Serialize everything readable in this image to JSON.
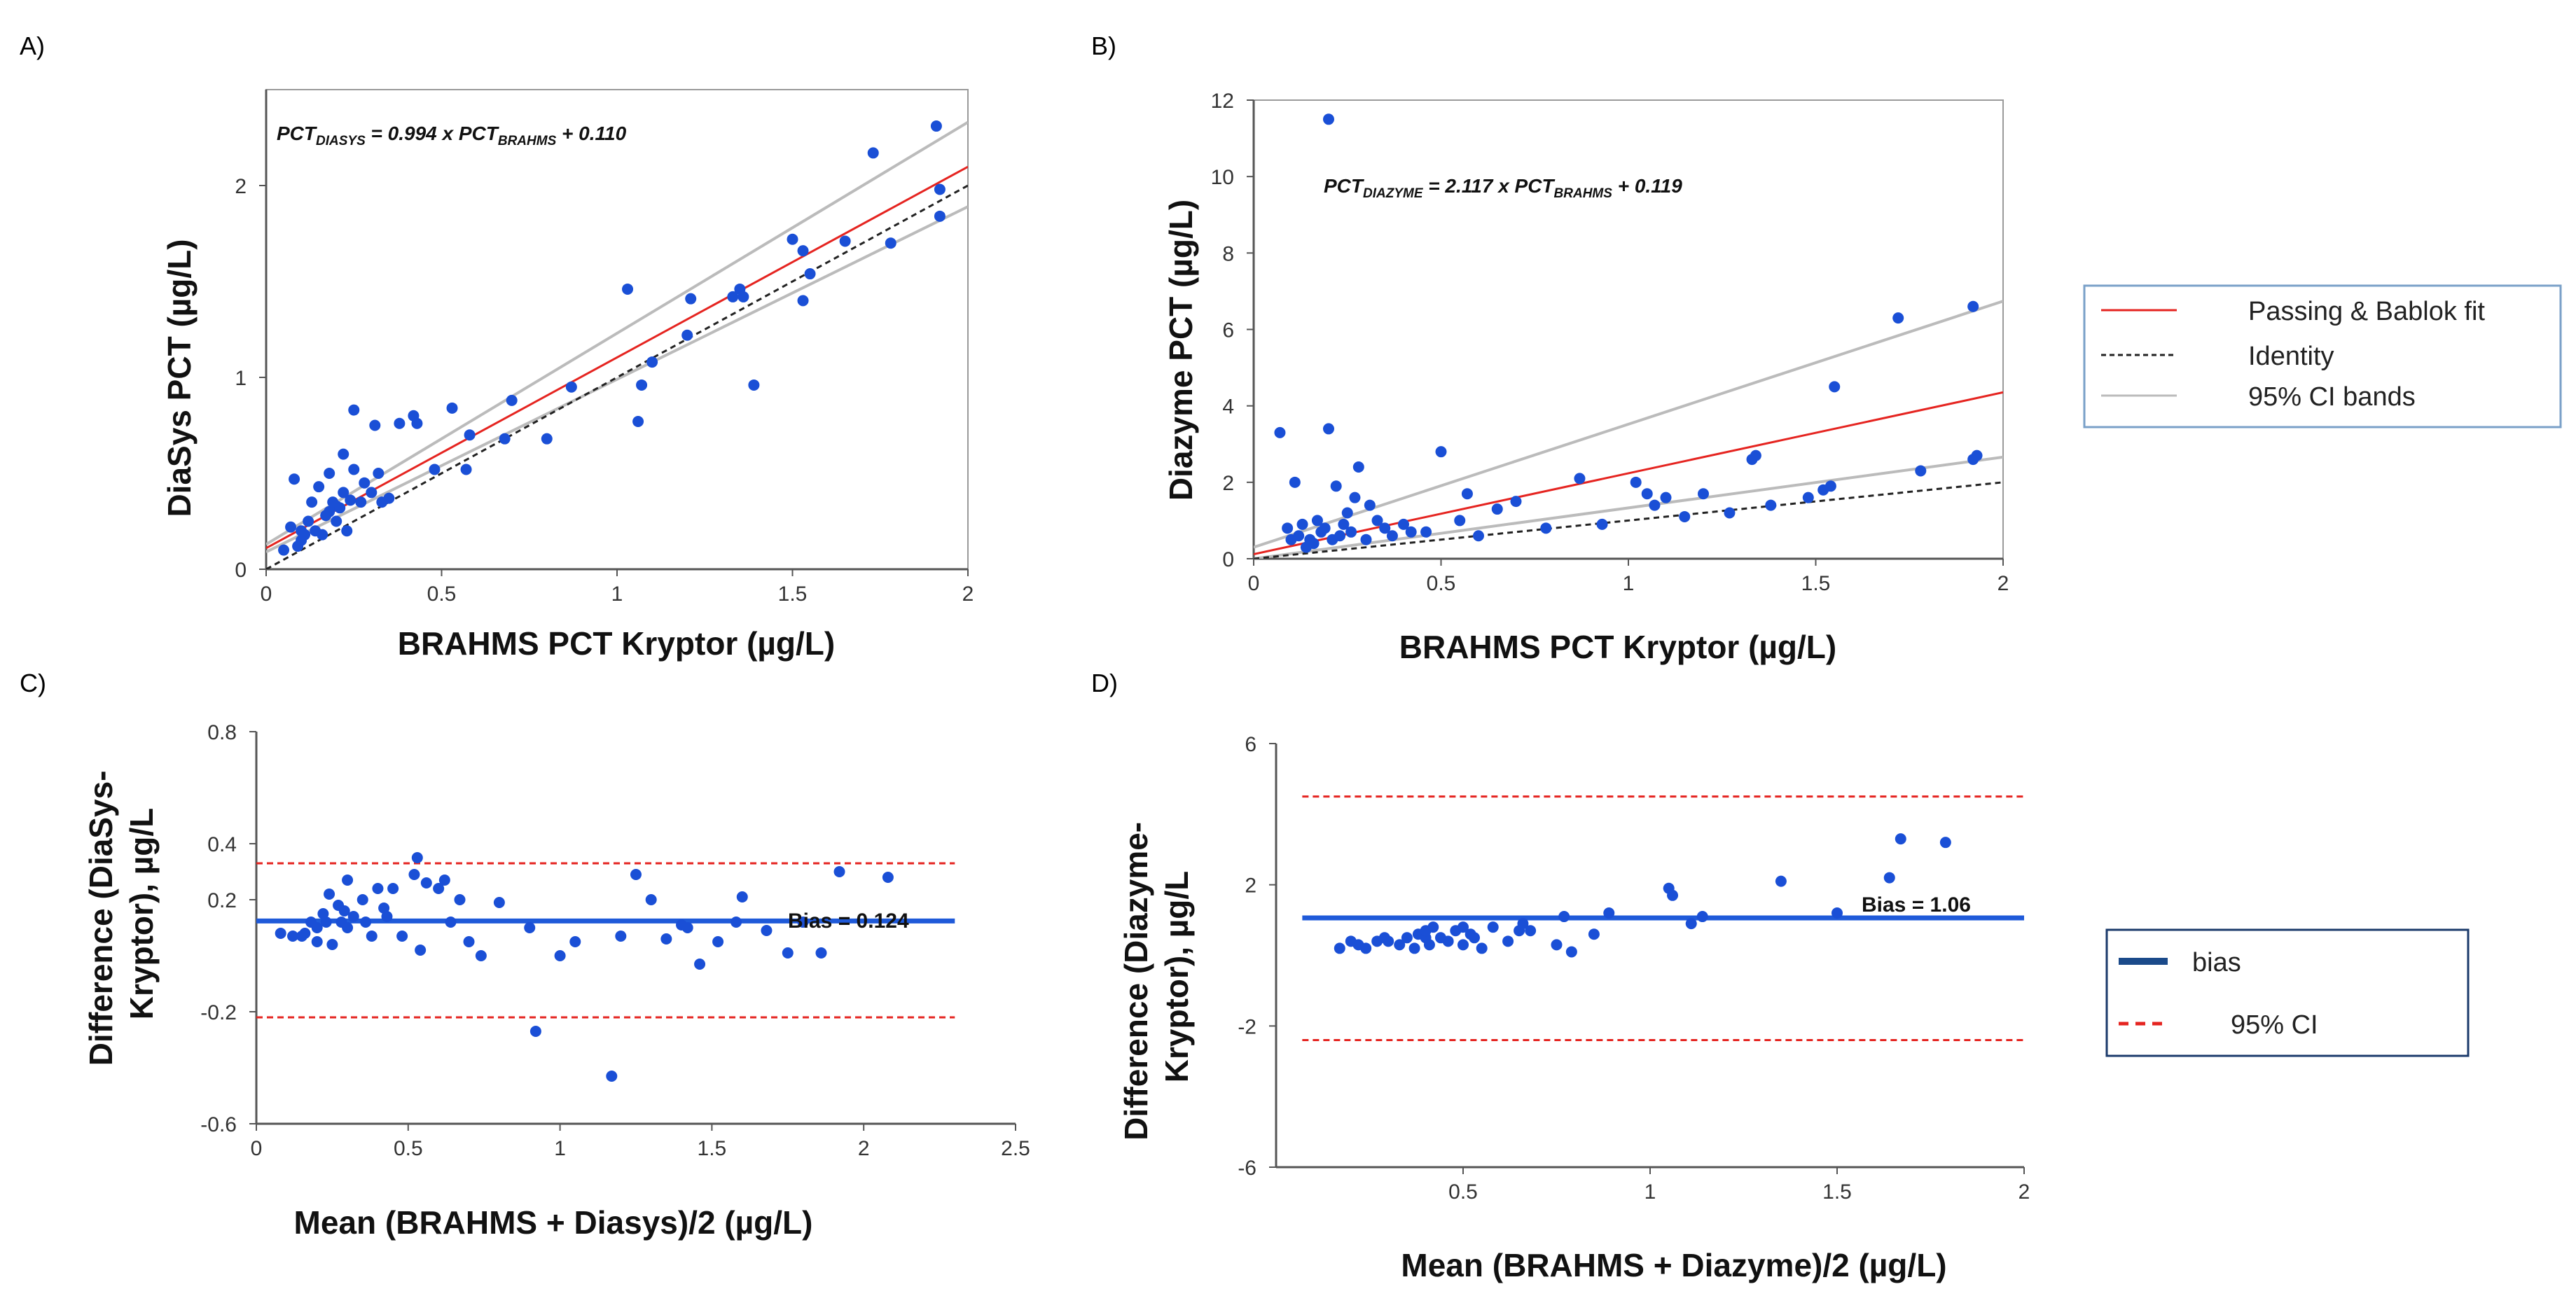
{
  "chart_data": [
    {
      "id": "A",
      "panel_label": "A)",
      "type": "scatter",
      "xlabel": "BRAHMS PCT  Kryptor (µg/L)",
      "ylabel": "DiaSys PCT (µg/L)",
      "xlim": [
        0,
        2
      ],
      "ylim": [
        0,
        2.5
      ],
      "xticks": [
        0,
        0.5,
        1,
        1.5,
        2
      ],
      "xtick_labels": [
        "0",
        "0.5",
        "1",
        "1.5",
        "2"
      ],
      "yticks": [
        0,
        1,
        2
      ],
      "ytick_labels": [
        "0",
        "1",
        "2"
      ],
      "equation": {
        "pre": "PCT",
        "sub1": "DIASYS",
        "mid": " = 0.994 x PCT",
        "sub2": "BRAHMS",
        "post": " + 0.110"
      },
      "fit": {
        "slope": 0.994,
        "intercept": 0.11
      },
      "ci_upper": {
        "slope": 1.1,
        "intercept": 0.13
      },
      "ci_lower": {
        "slope": 0.9,
        "intercept": 0.09
      },
      "points": [
        [
          0.05,
          0.1
        ],
        [
          0.07,
          0.22
        ],
        [
          0.08,
          0.47
        ],
        [
          0.09,
          0.12
        ],
        [
          0.1,
          0.15
        ],
        [
          0.1,
          0.2
        ],
        [
          0.11,
          0.18
        ],
        [
          0.12,
          0.25
        ],
        [
          0.13,
          0.35
        ],
        [
          0.14,
          0.2
        ],
        [
          0.15,
          0.43
        ],
        [
          0.16,
          0.18
        ],
        [
          0.17,
          0.28
        ],
        [
          0.18,
          0.3
        ],
        [
          0.18,
          0.5
        ],
        [
          0.19,
          0.35
        ],
        [
          0.2,
          0.25
        ],
        [
          0.2,
          0.33
        ],
        [
          0.21,
          0.32
        ],
        [
          0.22,
          0.4
        ],
        [
          0.22,
          0.6
        ],
        [
          0.23,
          0.2
        ],
        [
          0.24,
          0.36
        ],
        [
          0.25,
          0.52
        ],
        [
          0.25,
          0.83
        ],
        [
          0.27,
          0.35
        ],
        [
          0.28,
          0.45
        ],
        [
          0.3,
          0.4
        ],
        [
          0.31,
          0.75
        ],
        [
          0.32,
          0.5
        ],
        [
          0.33,
          0.35
        ],
        [
          0.35,
          0.37
        ],
        [
          0.38,
          0.76
        ],
        [
          0.42,
          0.8
        ],
        [
          0.43,
          0.76
        ],
        [
          0.48,
          0.52
        ],
        [
          0.53,
          0.84
        ],
        [
          0.57,
          0.52
        ],
        [
          0.58,
          0.7
        ],
        [
          0.68,
          0.68
        ],
        [
          0.7,
          0.88
        ],
        [
          0.8,
          0.68
        ],
        [
          0.87,
          0.95
        ],
        [
          1.03,
          1.46
        ],
        [
          1.06,
          0.77
        ],
        [
          1.07,
          0.96
        ],
        [
          1.1,
          1.08
        ],
        [
          1.2,
          1.22
        ],
        [
          1.21,
          1.41
        ],
        [
          1.33,
          1.42
        ],
        [
          1.35,
          1.46
        ],
        [
          1.36,
          1.42
        ],
        [
          1.39,
          0.96
        ],
        [
          1.5,
          1.72
        ],
        [
          1.53,
          1.66
        ],
        [
          1.53,
          1.4
        ],
        [
          1.55,
          1.54
        ],
        [
          1.65,
          1.71
        ],
        [
          1.73,
          2.17
        ],
        [
          1.78,
          1.7
        ],
        [
          1.91,
          2.31
        ],
        [
          1.92,
          1.98
        ],
        [
          1.92,
          1.84
        ]
      ]
    },
    {
      "id": "B",
      "panel_label": "B)",
      "type": "scatter",
      "xlabel": "BRAHMS PCT  Kryptor (µg/L)",
      "ylabel": "Diazyme PCT (µg/L)",
      "xlim": [
        0,
        2
      ],
      "ylim": [
        0,
        12
      ],
      "xticks": [
        0,
        0.5,
        1,
        1.5,
        2
      ],
      "xtick_labels": [
        "0",
        "0.5",
        "1",
        "1.5",
        "2"
      ],
      "yticks": [
        0,
        2,
        4,
        6,
        8,
        10,
        12
      ],
      "ytick_labels": [
        "0",
        "2",
        "4",
        "6",
        "8",
        "10",
        "12"
      ],
      "equation": {
        "pre": "PCT",
        "sub1": "DIAZYME",
        "mid": " = 2.117 x PCT",
        "sub2": "BRAHMS",
        "post": " + 0.119"
      },
      "fit": {
        "slope": 2.117,
        "intercept": 0.119
      },
      "ci_upper": {
        "slope": 3.22,
        "intercept": 0.3
      },
      "ci_lower": {
        "slope": 1.33,
        "intercept": 0.0
      },
      "points": [
        [
          0.07,
          3.3
        ],
        [
          0.09,
          0.8
        ],
        [
          0.1,
          0.5
        ],
        [
          0.11,
          2.0
        ],
        [
          0.12,
          0.6
        ],
        [
          0.13,
          0.9
        ],
        [
          0.14,
          0.3
        ],
        [
          0.15,
          0.5
        ],
        [
          0.16,
          0.4
        ],
        [
          0.17,
          1.0
        ],
        [
          0.18,
          0.7
        ],
        [
          0.19,
          0.8
        ],
        [
          0.2,
          3.4
        ],
        [
          0.2,
          11.5
        ],
        [
          0.21,
          0.5
        ],
        [
          0.22,
          1.9
        ],
        [
          0.23,
          0.6
        ],
        [
          0.24,
          0.9
        ],
        [
          0.25,
          1.2
        ],
        [
          0.26,
          0.7
        ],
        [
          0.27,
          1.6
        ],
        [
          0.28,
          2.4
        ],
        [
          0.3,
          0.5
        ],
        [
          0.31,
          1.4
        ],
        [
          0.33,
          1.0
        ],
        [
          0.35,
          0.8
        ],
        [
          0.37,
          0.6
        ],
        [
          0.4,
          0.9
        ],
        [
          0.42,
          0.7
        ],
        [
          0.46,
          0.7
        ],
        [
          0.5,
          2.8
        ],
        [
          0.55,
          1.0
        ],
        [
          0.57,
          1.7
        ],
        [
          0.6,
          0.6
        ],
        [
          0.65,
          1.3
        ],
        [
          0.7,
          1.5
        ],
        [
          0.78,
          0.8
        ],
        [
          0.87,
          2.1
        ],
        [
          0.93,
          0.9
        ],
        [
          1.02,
          2.0
        ],
        [
          1.05,
          1.7
        ],
        [
          1.07,
          1.4
        ],
        [
          1.1,
          1.6
        ],
        [
          1.15,
          1.1
        ],
        [
          1.2,
          1.7
        ],
        [
          1.27,
          1.2
        ],
        [
          1.33,
          2.6
        ],
        [
          1.34,
          2.7
        ],
        [
          1.38,
          1.4
        ],
        [
          1.48,
          1.6
        ],
        [
          1.52,
          1.8
        ],
        [
          1.54,
          1.9
        ],
        [
          1.55,
          4.5
        ],
        [
          1.72,
          6.3
        ],
        [
          1.78,
          2.3
        ],
        [
          1.92,
          6.6
        ],
        [
          1.92,
          2.6
        ],
        [
          1.93,
          2.7
        ]
      ]
    },
    {
      "id": "C",
      "panel_label": "C)",
      "type": "scatter",
      "xlabel": "Mean (BRAHMS + Diasys)/2 (µg/L)",
      "ylabel": [
        "Difference (DiaSys-",
        "Kryptor), µg/L"
      ],
      "xlim": [
        0,
        2.5
      ],
      "ylim": [
        -0.6,
        0.8
      ],
      "xticks": [
        0,
        0.5,
        1,
        1.5,
        2,
        2.5
      ],
      "xtick_labels": [
        "0",
        "0.5",
        "1",
        "1.5",
        "2",
        "2.5"
      ],
      "yticks": [
        -0.6,
        -0.2,
        0.2,
        0.4,
        0.8
      ],
      "ytick_labels": [
        "-0.6",
        "-0.2",
        "0.2",
        "0.4",
        "0.8"
      ],
      "bias": 0.124,
      "bias_label": "Bias = 0.124",
      "ci_low": -0.22,
      "ci_high": 0.33,
      "line_end_x": 2.3,
      "points": [
        [
          0.08,
          0.08
        ],
        [
          0.12,
          0.07
        ],
        [
          0.15,
          0.07
        ],
        [
          0.16,
          0.08
        ],
        [
          0.18,
          0.12
        ],
        [
          0.2,
          0.1
        ],
        [
          0.2,
          0.05
        ],
        [
          0.22,
          0.15
        ],
        [
          0.23,
          0.12
        ],
        [
          0.24,
          0.22
        ],
        [
          0.25,
          0.04
        ],
        [
          0.27,
          0.18
        ],
        [
          0.28,
          0.12
        ],
        [
          0.29,
          0.16
        ],
        [
          0.3,
          0.27
        ],
        [
          0.3,
          0.1
        ],
        [
          0.32,
          0.14
        ],
        [
          0.35,
          0.2
        ],
        [
          0.36,
          0.12
        ],
        [
          0.38,
          0.07
        ],
        [
          0.4,
          0.24
        ],
        [
          0.42,
          0.17
        ],
        [
          0.43,
          0.14
        ],
        [
          0.45,
          0.24
        ],
        [
          0.48,
          0.07
        ],
        [
          0.52,
          0.29
        ],
        [
          0.53,
          0.35
        ],
        [
          0.54,
          0.02
        ],
        [
          0.56,
          0.26
        ],
        [
          0.6,
          0.24
        ],
        [
          0.62,
          0.27
        ],
        [
          0.64,
          0.12
        ],
        [
          0.67,
          0.2
        ],
        [
          0.7,
          0.05
        ],
        [
          0.74,
          0.0
        ],
        [
          0.8,
          0.19
        ],
        [
          0.9,
          0.1
        ],
        [
          0.92,
          -0.27
        ],
        [
          1.0,
          0.0
        ],
        [
          1.05,
          0.05
        ],
        [
          1.17,
          -0.43
        ],
        [
          1.2,
          0.07
        ],
        [
          1.25,
          0.29
        ],
        [
          1.3,
          0.2
        ],
        [
          1.35,
          0.06
        ],
        [
          1.4,
          0.11
        ],
        [
          1.42,
          0.1
        ],
        [
          1.46,
          -0.03
        ],
        [
          1.52,
          0.05
        ],
        [
          1.58,
          0.12
        ],
        [
          1.6,
          0.21
        ],
        [
          1.68,
          0.09
        ],
        [
          1.75,
          0.01
        ],
        [
          1.8,
          0.12
        ],
        [
          1.86,
          0.01
        ],
        [
          1.92,
          0.3
        ],
        [
          2.08,
          0.28
        ]
      ]
    },
    {
      "id": "D",
      "panel_label": "D)",
      "type": "scatter",
      "xlabel": "Mean (BRAHMS + Diazyme)/2 (µg/L)",
      "ylabel": [
        "Difference (Diazyme-",
        "Kryptor), µg/L"
      ],
      "xlim": [
        0,
        2
      ],
      "ylim": [
        -6,
        6
      ],
      "xticks": [
        0.5,
        1,
        1.5,
        2
      ],
      "xtick_labels": [
        "0.5",
        "1",
        "1.5",
        "2"
      ],
      "yticks": [
        -6,
        -2,
        2,
        6
      ],
      "ytick_labels": [
        "-6",
        "-2",
        "2",
        "6"
      ],
      "bias": 1.06,
      "bias_label": "Bias = 1.06",
      "ci_low": -2.4,
      "ci_high": 4.5,
      "line_start_x": 0.07,
      "points": [
        [
          0.17,
          0.2
        ],
        [
          0.2,
          0.4
        ],
        [
          0.22,
          0.3
        ],
        [
          0.24,
          0.2
        ],
        [
          0.27,
          0.4
        ],
        [
          0.29,
          0.5
        ],
        [
          0.3,
          0.4
        ],
        [
          0.33,
          0.3
        ],
        [
          0.35,
          0.5
        ],
        [
          0.37,
          0.2
        ],
        [
          0.38,
          0.6
        ],
        [
          0.4,
          0.5
        ],
        [
          0.4,
          0.7
        ],
        [
          0.41,
          0.3
        ],
        [
          0.42,
          0.8
        ],
        [
          0.44,
          0.5
        ],
        [
          0.46,
          0.4
        ],
        [
          0.48,
          0.7
        ],
        [
          0.5,
          0.3
        ],
        [
          0.5,
          0.8
        ],
        [
          0.52,
          0.6
        ],
        [
          0.53,
          0.5
        ],
        [
          0.55,
          0.2
        ],
        [
          0.58,
          0.8
        ],
        [
          0.62,
          0.4
        ],
        [
          0.65,
          0.7
        ],
        [
          0.66,
          0.9
        ],
        [
          0.68,
          0.7
        ],
        [
          0.75,
          0.3
        ],
        [
          0.77,
          1.1
        ],
        [
          0.79,
          0.1
        ],
        [
          0.85,
          0.6
        ],
        [
          0.89,
          1.2
        ],
        [
          1.05,
          1.9
        ],
        [
          1.06,
          1.7
        ],
        [
          1.11,
          0.9
        ],
        [
          1.14,
          1.1
        ],
        [
          1.35,
          2.1
        ],
        [
          1.5,
          1.2
        ],
        [
          1.64,
          2.2
        ],
        [
          1.67,
          3.3
        ],
        [
          1.79,
          3.2
        ]
      ]
    }
  ],
  "legends": {
    "top": {
      "items": [
        {
          "label": "Passing & Bablok fit",
          "color": "#e52420",
          "dash": "solid"
        },
        {
          "label": "Identity",
          "color": "#222222",
          "dash": "dashed"
        },
        {
          "label": "95% CI bands",
          "color": "#bbbbbb",
          "dash": "solid"
        }
      ]
    },
    "bottom": {
      "items": [
        {
          "label": "bias",
          "color": "#1b4a8a",
          "dash": "thick"
        },
        {
          "label": "95% CI",
          "color": "#e52420",
          "dash": "dashed"
        }
      ]
    }
  },
  "colors": {
    "point": "#1a4fd6",
    "fit": "#e52420",
    "identity": "#222222",
    "ci_band": "#bbbbbb",
    "bias_line": "#1f5ad9",
    "ci_line": "#e52420",
    "axis": "#555555"
  }
}
